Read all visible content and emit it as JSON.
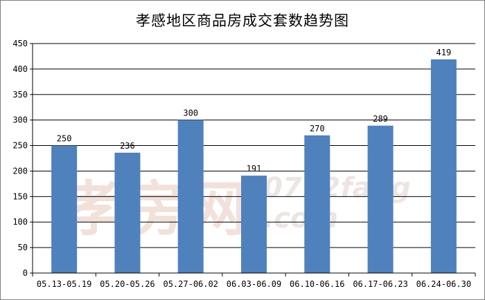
{
  "chart_data": {
    "type": "bar",
    "title": "孝感地区商品房成交套数趋势图",
    "xlabel": "",
    "ylabel": "",
    "categories": [
      "05.13-05.19",
      "05.20-05.26",
      "05.27-06.02",
      "06.03-06.09",
      "06.10-06.16",
      "06.17-06.23",
      "06.24-06.30"
    ],
    "values": [
      250,
      236,
      300,
      191,
      270,
      289,
      419
    ],
    "ylim": [
      0,
      450
    ],
    "yticks": [
      0,
      50,
      100,
      150,
      200,
      250,
      300,
      350,
      400,
      450
    ],
    "grid": true,
    "legend": "none",
    "bar_color": "#4f81bd",
    "data_labels": true
  },
  "watermark": {
    "chinese": "孝房网",
    "english_line1": "0712fang",
    "english_line2": ".com"
  }
}
